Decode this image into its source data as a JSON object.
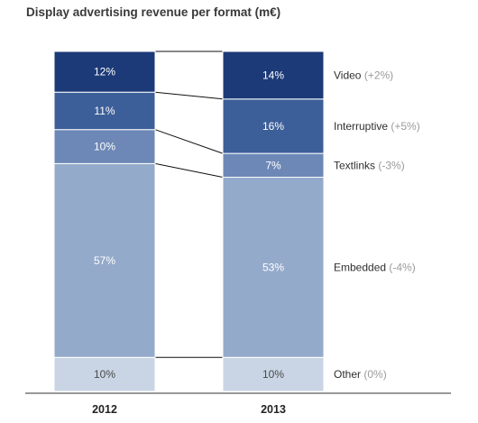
{
  "chart_data": {
    "type": "bar",
    "stacked": true,
    "normalized_percent": true,
    "title": "Display advertising revenue per format (m€)",
    "xlabel": "",
    "ylabel": "",
    "ylim": [
      0,
      100
    ],
    "grid": false,
    "legend_placement": "right",
    "categories": [
      "2012",
      "2013"
    ],
    "series": [
      {
        "name": "Other",
        "change": "(0%)",
        "values": [
          10,
          10
        ],
        "labels": [
          "10%",
          "10%"
        ],
        "color": "#c9d5e4",
        "label_color": "#4a4a4a"
      },
      {
        "name": "Embedded",
        "change": "(-4%)",
        "values": [
          57,
          53
        ],
        "labels": [
          "57%",
          "53%"
        ],
        "color": "#94aacb",
        "label_color": "#ffffff"
      },
      {
        "name": "Textlinks",
        "change": "(-3%)",
        "values": [
          10,
          7
        ],
        "labels": [
          "10%",
          "7%"
        ],
        "color": "#6d88b6",
        "label_color": "#ffffff"
      },
      {
        "name": "Interruptive",
        "change": "(+5%)",
        "values": [
          11,
          16
        ],
        "labels": [
          "11%",
          "16%"
        ],
        "color": "#3d5f99",
        "label_color": "#ffffff"
      },
      {
        "name": "Video",
        "change": "(+2%)",
        "values": [
          12,
          14
        ],
        "labels": [
          "12%",
          "14%"
        ],
        "color": "#1c3a78",
        "label_color": "#ffffff"
      }
    ]
  }
}
